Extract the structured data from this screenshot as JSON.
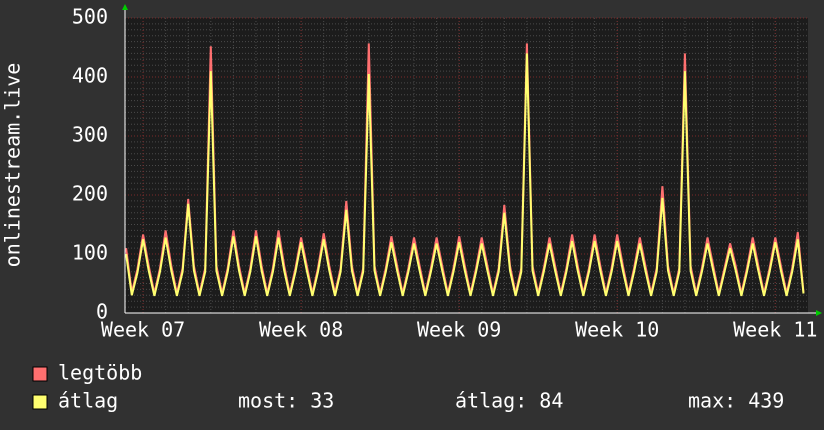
{
  "chart_data": {
    "type": "line",
    "y_label": "onlinestream.live",
    "x": [
      -0.75,
      -0.5,
      -0.25,
      0,
      0.25,
      0.5,
      0.75,
      1,
      1.25,
      1.5,
      1.75,
      2,
      2.25,
      2.5,
      2.75,
      3,
      3.25,
      3.5,
      3.75,
      4,
      4.25,
      4.5,
      4.75,
      5,
      5.25,
      5.5,
      5.75,
      6,
      6.25,
      6.5,
      6.75,
      7,
      7.25,
      7.5,
      7.75,
      8,
      8.25,
      8.5,
      8.75,
      9,
      9.25,
      9.5,
      9.75,
      10,
      10.25,
      10.5,
      10.75,
      11,
      11.25,
      11.5,
      11.75,
      12,
      12.25,
      12.5,
      12.75,
      13,
      13.25,
      13.5,
      13.75,
      14,
      14.25,
      14.5,
      14.75,
      15,
      15.25,
      15.5,
      15.75,
      16,
      16.25,
      16.5,
      16.75,
      17,
      17.25,
      17.5,
      17.75,
      18,
      18.25,
      18.5,
      18.75,
      19,
      19.25,
      19.5,
      19.75,
      20,
      20.25,
      20.5,
      20.75,
      21,
      21.25,
      21.5,
      21.75,
      22,
      22.25,
      22.5,
      22.75,
      23,
      23.25,
      23.5,
      23.75,
      24,
      24.25,
      24.5,
      24.75,
      25,
      25.25,
      25.5,
      25.75,
      26,
      26.25,
      26.5,
      26.75,
      27,
      27.25,
      27.5,
      27.75,
      28,
      28.25,
      28.5,
      28.75,
      29,
      29.25
    ],
    "xlim": [
      -0.8,
      29.45
    ],
    "xticks": [
      {
        "value": 0,
        "label": "Week 07"
      },
      {
        "value": 7,
        "label": "Week 08"
      },
      {
        "value": 14,
        "label": "Week 09"
      },
      {
        "value": 21,
        "label": "Week 10"
      },
      {
        "value": 28,
        "label": "Week 11"
      }
    ],
    "ylim": [
      0,
      500
    ],
    "yticks": [
      0,
      100,
      200,
      300,
      400,
      500
    ],
    "grid": true,
    "series": [
      {
        "name": "legtöbb",
        "color": "#ff7070",
        "values": [
          110,
          35,
          74,
          133,
          80,
          33,
          76,
          140,
          80,
          33,
          76,
          193,
          80,
          33,
          76,
          452,
          80,
          33,
          76,
          140,
          80,
          33,
          76,
          140,
          80,
          33,
          76,
          140,
          80,
          33,
          76,
          128,
          80,
          33,
          76,
          135,
          80,
          33,
          76,
          190,
          80,
          33,
          76,
          457,
          80,
          33,
          76,
          130,
          80,
          33,
          76,
          128,
          80,
          33,
          76,
          128,
          80,
          33,
          76,
          130,
          80,
          33,
          76,
          128,
          80,
          33,
          76,
          183,
          80,
          33,
          76,
          457,
          80,
          33,
          76,
          128,
          80,
          33,
          76,
          133,
          80,
          33,
          76,
          133,
          80,
          33,
          76,
          133,
          80,
          33,
          76,
          128,
          80,
          33,
          76,
          215,
          80,
          33,
          76,
          440,
          80,
          33,
          76,
          128,
          80,
          33,
          76,
          118,
          80,
          33,
          76,
          128,
          80,
          33,
          76,
          128,
          80,
          33,
          76,
          137,
          35
        ]
      },
      {
        "name": "átlag",
        "color": "#ffff70",
        "values": [
          100,
          30,
          68,
          125,
          72,
          29,
          70,
          128,
          72,
          29,
          70,
          185,
          72,
          29,
          70,
          410,
          72,
          29,
          70,
          130,
          72,
          29,
          70,
          130,
          72,
          29,
          70,
          128,
          72,
          29,
          70,
          120,
          72,
          29,
          70,
          125,
          72,
          29,
          70,
          175,
          72,
          29,
          70,
          405,
          72,
          29,
          70,
          120,
          72,
          29,
          70,
          118,
          72,
          29,
          70,
          118,
          72,
          29,
          70,
          120,
          72,
          29,
          70,
          118,
          72,
          29,
          70,
          170,
          72,
          29,
          70,
          440,
          72,
          29,
          70,
          118,
          72,
          29,
          70,
          122,
          72,
          29,
          70,
          122,
          72,
          29,
          70,
          122,
          72,
          29,
          70,
          118,
          72,
          29,
          70,
          195,
          72,
          29,
          70,
          410,
          72,
          29,
          70,
          118,
          72,
          29,
          70,
          110,
          72,
          29,
          70,
          118,
          72,
          29,
          70,
          120,
          72,
          29,
          70,
          125,
          33
        ]
      }
    ],
    "summary": [
      "most: 33",
      "átlag: 84",
      "max: 439"
    ]
  }
}
